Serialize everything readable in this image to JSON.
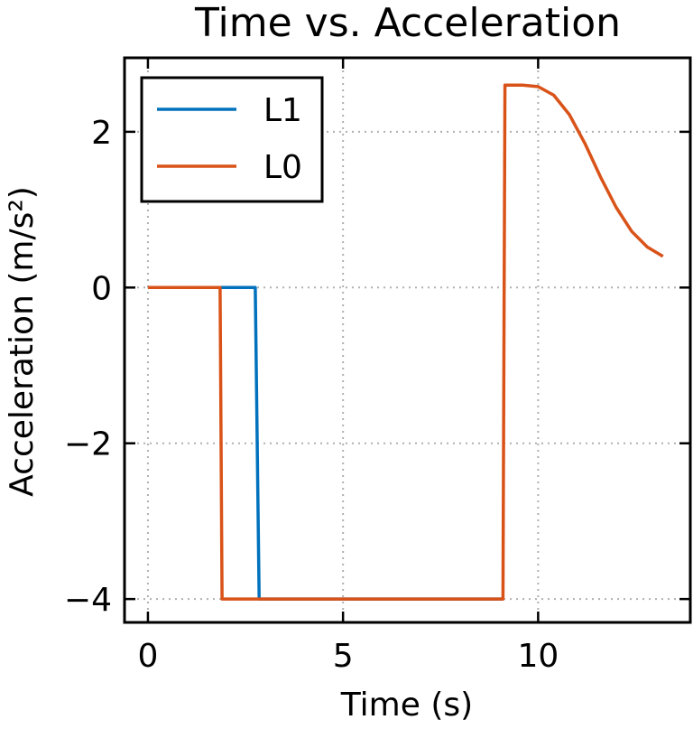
{
  "chart_data": {
    "type": "line",
    "title": "Time vs. Acceleration",
    "xlabel": "Time (s)",
    "ylabel": "Acceleration (m/s²)",
    "xlim": [
      -0.6,
      13.9
    ],
    "ylim": [
      -4.3,
      2.95
    ],
    "xticks": [
      0,
      5,
      10
    ],
    "xtick_labels": [
      "0",
      "5",
      "10"
    ],
    "yticks": [
      -4,
      -2,
      0,
      2
    ],
    "ytick_labels": [
      "−4",
      "−2",
      "0",
      "2"
    ],
    "grid": true,
    "legend_position": "top-left",
    "series": [
      {
        "name": "L1",
        "color": "#0072bd",
        "x": [
          0.0,
          2.75,
          2.85,
          9.1
        ],
        "y": [
          0.0,
          0.0,
          -4.0,
          -4.0
        ]
      },
      {
        "name": "L0",
        "color": "#d95319",
        "x": [
          0.0,
          1.85,
          1.9,
          9.1,
          9.15,
          9.6,
          10.0,
          10.4,
          10.8,
          11.2,
          11.6,
          12.0,
          12.4,
          12.8,
          13.2
        ],
        "y": [
          0.0,
          0.0,
          -4.0,
          -4.0,
          2.6,
          2.6,
          2.58,
          2.47,
          2.22,
          1.85,
          1.42,
          1.03,
          0.72,
          0.52,
          0.4
        ]
      }
    ]
  }
}
